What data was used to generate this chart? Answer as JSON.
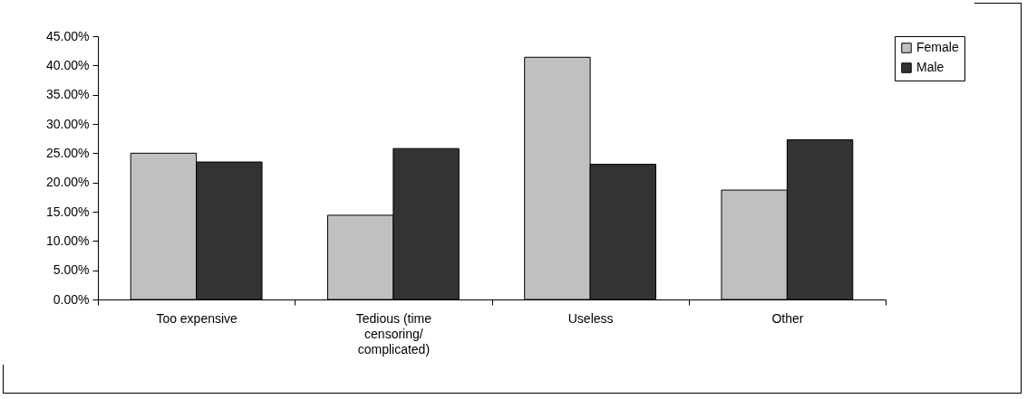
{
  "chart_data": {
    "type": "bar",
    "categories": [
      "Too expensive",
      "Tedious (time censoring/ complicated)",
      "Useless",
      "Other"
    ],
    "series": [
      {
        "name": "Female",
        "color": "#c0c0c0",
        "values": [
          25.0,
          14.4,
          41.4,
          18.7
        ]
      },
      {
        "name": "Male",
        "color": "#333333",
        "values": [
          23.5,
          25.8,
          23.1,
          27.3
        ]
      }
    ],
    "ylim": [
      0,
      45
    ],
    "yticks": [
      {
        "value": 0,
        "label": "0.00%"
      },
      {
        "value": 5,
        "label": "5.00%"
      },
      {
        "value": 10,
        "label": "10.00%"
      },
      {
        "value": 15,
        "label": "15.00%"
      },
      {
        "value": 20,
        "label": "20.00%"
      },
      {
        "value": 25,
        "label": "25.00%"
      },
      {
        "value": 30,
        "label": "30.00%"
      },
      {
        "value": 35,
        "label": "35.00%"
      },
      {
        "value": 40,
        "label": "40.00%"
      },
      {
        "value": 45,
        "label": "45.00%"
      }
    ],
    "grid": false,
    "legend": "right"
  }
}
